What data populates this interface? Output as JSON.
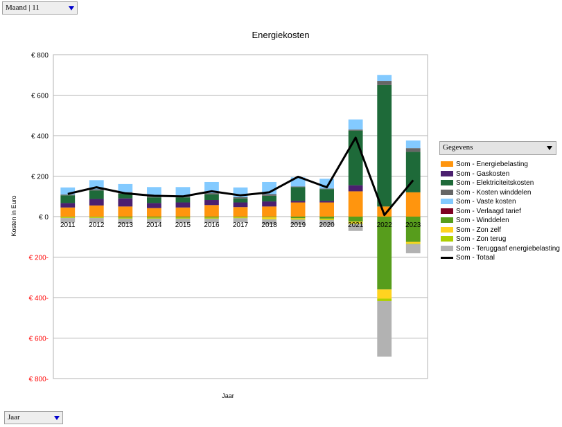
{
  "filters": {
    "top": {
      "value": "Maand | 11"
    },
    "bottom": {
      "value": "Jaar"
    },
    "legend_field": {
      "value": "Gegevens"
    }
  },
  "chart_data": {
    "type": "bar",
    "stacked": true,
    "title": "Energiekosten",
    "xlabel": "Jaar",
    "ylabel": "Kosten in Euro",
    "ylim": [
      -800,
      800
    ],
    "yticks": [
      -800,
      -600,
      -400,
      -200,
      0,
      200,
      400,
      600,
      800
    ],
    "ytick_labels": [
      "€ 800-",
      "€ 600-",
      "€ 400-",
      "€ 200-",
      "€ 0",
      "€ 200",
      "€ 400",
      "€ 600",
      "€ 800"
    ],
    "negative_tick_color": "#ff0000",
    "grid": true,
    "legend_position": "right",
    "categories": [
      "2011",
      "2012",
      "2013",
      "2014",
      "2015",
      "2016",
      "2017",
      "2018",
      "2019",
      "2020",
      "2021",
      "2022",
      "2023"
    ],
    "series": [
      {
        "name": "Som - Energiebelasting",
        "color": "#ff950e",
        "values": [
          45,
          55,
          50,
          42,
          45,
          57,
          47,
          50,
          70,
          70,
          125,
          50,
          120
        ]
      },
      {
        "name": "Som - Gaskosten",
        "color": "#4b1f6f",
        "values": [
          22,
          32,
          40,
          25,
          25,
          25,
          23,
          25,
          8,
          8,
          30,
          0,
          0
        ]
      },
      {
        "name": "Som - Elektriciteitskosten",
        "color": "#1e6a39",
        "values": [
          38,
          42,
          23,
          28,
          25,
          28,
          20,
          28,
          68,
          58,
          270,
          600,
          200
        ]
      },
      {
        "name": "Som - Kosten winddelen",
        "color": "#666666",
        "values": [
          4,
          6,
          8,
          6,
          6,
          6,
          6,
          8,
          3,
          3,
          5,
          20,
          18
        ]
      },
      {
        "name": "Som - Vaste kosten",
        "color": "#83caff",
        "values": [
          35,
          45,
          40,
          45,
          45,
          55,
          48,
          60,
          45,
          48,
          50,
          30,
          38
        ]
      },
      {
        "name": "Som - Verlaagd tarief",
        "color": "#7e0021",
        "values": [
          0,
          0,
          0,
          0,
          0,
          0,
          0,
          0,
          0,
          0,
          0,
          0,
          0
        ]
      },
      {
        "name": "Som - Winddelen",
        "color": "#579d1c",
        "values": [
          -2,
          -2,
          -5,
          -5,
          -5,
          -5,
          -3,
          -3,
          -8,
          -10,
          -25,
          -360,
          -125
        ]
      },
      {
        "name": "Som - Zon zelf",
        "color": "#ffd320",
        "values": [
          -2,
          -2,
          -2,
          -2,
          -2,
          -2,
          -2,
          -8,
          -4,
          -4,
          -8,
          -45,
          -8
        ]
      },
      {
        "name": "Som - Zon terug",
        "color": "#aecf00",
        "values": [
          -3,
          -3,
          -3,
          -3,
          -3,
          -3,
          -3,
          -3,
          -3,
          -3,
          -3,
          -12,
          -3
        ]
      },
      {
        "name": "Som - Teruggaaf energiebelasting",
        "color": "#b2b2b2",
        "values": [
          -22,
          -22,
          -25,
          -20,
          -20,
          -20,
          -20,
          -25,
          -25,
          -27,
          -35,
          -275,
          -45
        ]
      }
    ],
    "line_series": {
      "name": "Som - Totaal",
      "color": "#000000",
      "values": [
        112,
        145,
        115,
        103,
        100,
        125,
        105,
        120,
        197,
        145,
        390,
        8,
        180
      ]
    }
  }
}
